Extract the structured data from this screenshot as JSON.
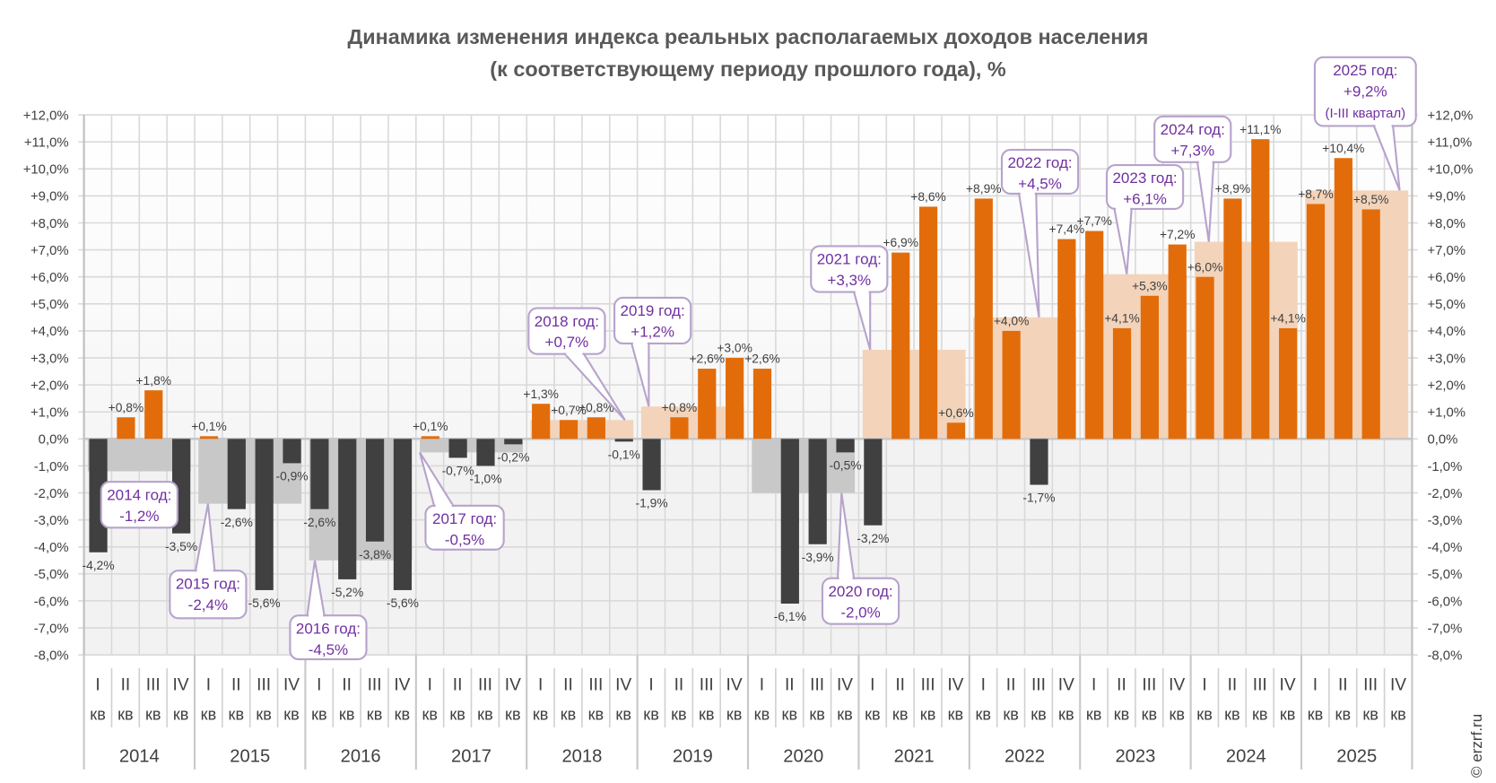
{
  "chart_data": {
    "type": "bar",
    "title_line1": "Динамика изменения индекса реальных располагаемых доходов населения",
    "title_line2": "(к соответствующему  периоду прошлого года), %",
    "xlabel": "",
    "ylabel": "",
    "ylim": [
      -8,
      12
    ],
    "ytick_step": 1,
    "grid": true,
    "legend": "none",
    "quarter_labels": [
      [
        "I",
        "кв"
      ],
      [
        "II",
        "кв"
      ],
      [
        "III",
        "кв"
      ],
      [
        "IV",
        "кв"
      ]
    ],
    "years": [
      "2014",
      "2015",
      "2016",
      "2017",
      "2018",
      "2019",
      "2020",
      "2021",
      "2022",
      "2023",
      "2024",
      "2025"
    ],
    "quarterly_values": [
      [
        -4.2,
        0.8,
        1.8,
        -3.5
      ],
      [
        0.1,
        -2.6,
        -5.6,
        -0.9
      ],
      [
        -2.6,
        -5.2,
        -3.8,
        -5.6
      ],
      [
        0.1,
        -0.7,
        -1.0,
        -0.2
      ],
      [
        1.3,
        0.7,
        0.8,
        -0.1
      ],
      [
        -1.9,
        0.8,
        2.6,
        3.0
      ],
      [
        2.6,
        -6.1,
        -3.9,
        -0.5
      ],
      [
        -3.2,
        6.9,
        8.6,
        0.6
      ],
      [
        8.9,
        4.0,
        -1.7,
        7.4
      ],
      [
        7.7,
        4.1,
        5.3,
        7.2
      ],
      [
        6.0,
        8.9,
        11.1,
        4.1
      ],
      [
        8.7,
        10.4,
        8.5,
        null
      ]
    ],
    "annual": [
      {
        "label": "2014 год:",
        "value": -1.2
      },
      {
        "label": "2015 год:",
        "value": -2.4
      },
      {
        "label": "2016 год:",
        "value": -4.5
      },
      {
        "label": "2017 год:",
        "value": -0.5
      },
      {
        "label": "2018 год:",
        "value": 0.7
      },
      {
        "label": "2019 год:",
        "value": 1.2
      },
      {
        "label": "2020 год:",
        "value": -2.0
      },
      {
        "label": "2021 год:",
        "value": 3.3
      },
      {
        "label": "2022 год:",
        "value": 4.5
      },
      {
        "label": "2023 год:",
        "value": 6.1
      },
      {
        "label": "2024 год:",
        "value": 7.3
      },
      {
        "label": "2025 год:",
        "value": 9.2,
        "note": "(I-III квартал)"
      }
    ],
    "colors": {
      "positive_bar": "#e36c0a",
      "negative_bar": "#404040",
      "positive_annual": "#f3d4ba",
      "negative_annual": "#c8c8c8",
      "callout_text": "#7030a0",
      "callout_border": "#b7a3cc"
    }
  },
  "credit": "© erzrf.ru"
}
